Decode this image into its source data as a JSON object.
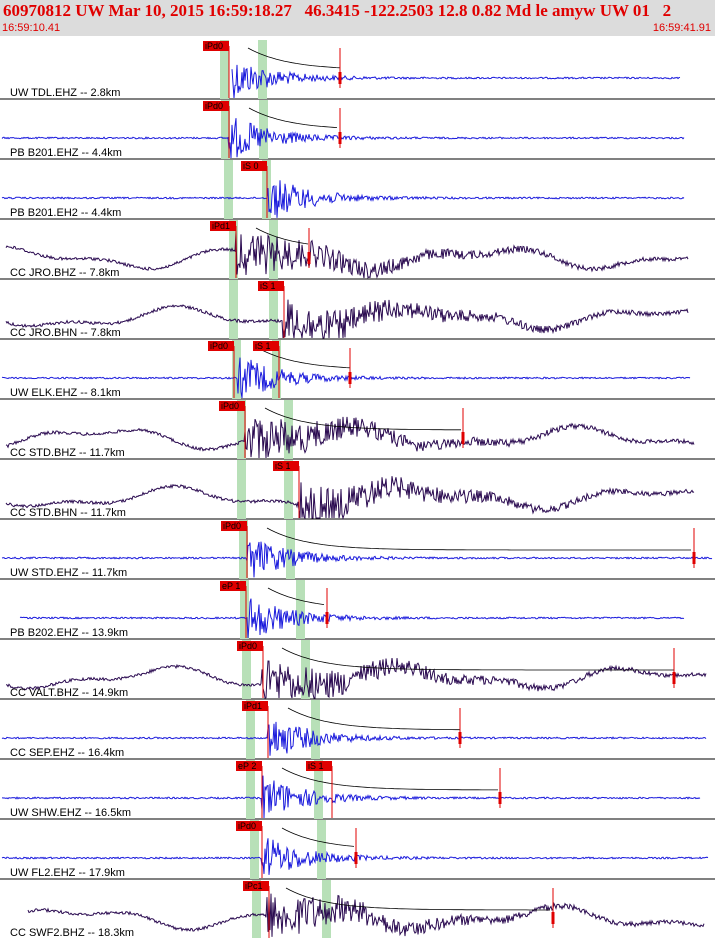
{
  "header": {
    "title": "60970812 UW Mar 10, 2015 16:59:18.27   46.3415 -122.2503 12.8 0.82 Md le amyw UW 01   2",
    "start_time": "16:59:10.41",
    "end_time": "16:59:41.91"
  },
  "colors": {
    "header_bg": "#dcdcdc",
    "header_text": "#e00000",
    "ehz_trace": "#1a1adc",
    "broadband_trace": "#2a0a50",
    "pick": "#e00000",
    "window": "#b8e0b8"
  },
  "traces": [
    {
      "label": "UW TDL.EHZ -- 2.8km",
      "color": "#1a1adc",
      "picks": [
        "iPd0"
      ],
      "wins": [
        224,
        262
      ],
      "picksx": [
        203
      ],
      "p": 228,
      "end": 340,
      "xs": 232,
      "xe": 680,
      "long": false
    },
    {
      "label": "PB B201.EHZ -- 4.4km",
      "color": "#1a1adc",
      "picks": [
        "iPd0"
      ],
      "wins": [
        225,
        263
      ],
      "picksx": [
        203
      ],
      "p": 229,
      "end": 340,
      "xs": 2,
      "xe": 684,
      "long": false
    },
    {
      "label": "PB B201.EH2 -- 4.4km",
      "color": "#1a1adc",
      "picks": [
        "iS 0"
      ],
      "wins": [
        228,
        266
      ],
      "picksx": [
        241
      ],
      "p": 268,
      "end": 0,
      "xs": 2,
      "xe": 684,
      "long": false
    },
    {
      "label": "CC JRO.BHZ -- 7.8km",
      "color": "#2a0a50",
      "picks": [
        "iPd1"
      ],
      "wins": [
        233,
        273
      ],
      "picksx": [
        210
      ],
      "p": 236,
      "end": 309,
      "xs": 6,
      "xe": 688,
      "long": true
    },
    {
      "label": "CC JRO.BHN -- 7.8km",
      "color": "#2a0a50",
      "picks": [
        "iS 1"
      ],
      "wins": [
        233,
        273
      ],
      "picksx": [
        258
      ],
      "p": 283,
      "end": 0,
      "xs": 6,
      "xe": 688,
      "long": true
    },
    {
      "label": "UW ELK.EHZ -- 8.1km",
      "color": "#1a1adc",
      "picks": [
        "iPd0",
        "iS 1"
      ],
      "wins": [
        236,
        276
      ],
      "picksx": [
        208,
        253
      ],
      "p": 238,
      "end": 350,
      "xs": 2,
      "xe": 690,
      "long": false
    },
    {
      "label": "CC STD.BHZ -- 11.7km",
      "color": "#2a0a50",
      "picks": [
        "iPd0"
      ],
      "wins": [
        241,
        288
      ],
      "picksx": [
        219
      ],
      "p": 245,
      "end": 463,
      "xs": 6,
      "xe": 694,
      "long": true
    },
    {
      "label": "CC STD.BHN -- 11.7km",
      "color": "#2a0a50",
      "picks": [
        "iS 1"
      ],
      "wins": [
        241,
        288
      ],
      "picksx": [
        273
      ],
      "p": 297,
      "end": 0,
      "xs": 6,
      "xe": 694,
      "long": true
    },
    {
      "label": "UW STD.EHZ -- 11.7km",
      "color": "#1a1adc",
      "picks": [
        "iPd0"
      ],
      "wins": [
        243,
        290
      ],
      "picksx": [
        221
      ],
      "p": 247,
      "end": 694,
      "xs": 2,
      "xe": 712,
      "long": false
    },
    {
      "label": "PB B202.EHZ -- 13.9km",
      "color": "#1a1adc",
      "picks": [
        "eP 1"
      ],
      "wins": [
        244,
        300
      ],
      "picksx": [
        220
      ],
      "p": 248,
      "end": 327,
      "xs": 20,
      "xe": 684,
      "long": false
    },
    {
      "label": "CC VALT.BHZ -- 14.9km",
      "color": "#2a0a50",
      "picks": [
        "iPd0"
      ],
      "wins": [
        246,
        305
      ],
      "picksx": [
        237
      ],
      "p": 262,
      "end": 674,
      "xs": 6,
      "xe": 706,
      "long": true
    },
    {
      "label": "CC SEP.EHZ -- 16.4km",
      "color": "#1a1adc",
      "picks": [
        "iPd1"
      ],
      "wins": [
        250,
        315
      ],
      "picksx": [
        242
      ],
      "p": 268,
      "end": 460,
      "xs": 2,
      "xe": 706,
      "long": false
    },
    {
      "label": "UW SHW.EHZ -- 16.5km",
      "color": "#1a1adc",
      "picks": [
        "eP 2",
        "iS 1"
      ],
      "wins": [
        250,
        318
      ],
      "picksx": [
        236,
        306
      ],
      "p": 262,
      "end": 500,
      "xs": 2,
      "xe": 700,
      "long": false
    },
    {
      "label": "UW FL2.EHZ -- 17.9km",
      "color": "#1a1adc",
      "picks": [
        "iPd0"
      ],
      "wins": [
        254,
        321
      ],
      "picksx": [
        236
      ],
      "p": 262,
      "end": 356,
      "xs": 2,
      "xe": 708,
      "long": false
    },
    {
      "label": "CC SWF2.BHZ -- 18.3km",
      "color": "#2a0a50",
      "picks": [
        "iPc1"
      ],
      "wins": [
        256,
        326
      ],
      "picksx": [
        243
      ],
      "p": 266,
      "end": 553,
      "xs": 28,
      "xe": 704,
      "long": true
    }
  ]
}
